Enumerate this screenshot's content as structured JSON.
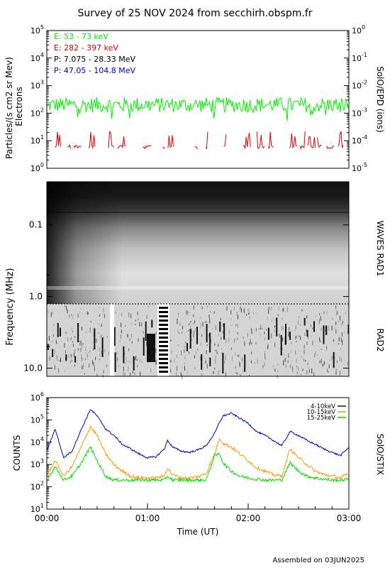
{
  "title": "Survey of 25 NOV 2024 from secchirh.obspm.fr",
  "footer": "Assembled on 03JUN2025",
  "colors": {
    "green": "#00ee00",
    "red": "#dd0000",
    "black": "#000000",
    "blue": "#0000cc",
    "orange": "#ff9900"
  },
  "chart_data": [
    {
      "type": "line",
      "panel": "epd",
      "ylabel": "Particles/(s cm2 sr Mev)",
      "ylabel2": "Electrons",
      "right_label": "SolO/EPD (ions)",
      "y_scale": "log",
      "ylim": [
        1,
        100000
      ],
      "y_ticks": [
        "10^0",
        "10^1",
        "10^2",
        "10^3",
        "10^4",
        "10^5"
      ],
      "y2lim": [
        1e-05,
        1
      ],
      "y2_ticks": [
        "10^-5",
        "10^-4",
        "10^-3",
        "10^-2",
        "10^-1",
        "10^0"
      ],
      "legend": [
        {
          "label": "E: 53 - 73 keV",
          "color": "#00ee00"
        },
        {
          "label": "E: 282 - 397 keV",
          "color": "#dd0000"
        },
        {
          "label": "P: 7.075 - 28.33 MeV",
          "color": "#000000"
        },
        {
          "label": "P: 47.05 - 104.8 MeV",
          "color": "#0000cc"
        }
      ],
      "series": [
        {
          "name": "E: 53 - 73 keV",
          "typical_value": 200,
          "range": [
            60,
            400
          ]
        },
        {
          "name": "E: 282 - 397 keV",
          "typical_value": 6,
          "range": [
            5,
            25
          ],
          "note_sporadic": true
        }
      ]
    },
    {
      "type": "heatmap",
      "panel": "waves",
      "ylabel": "Frequency (MHz)",
      "y_scale": "log",
      "y_ticks": [
        "0.1",
        "1.0",
        "10.0"
      ],
      "ylim": [
        0.025,
        13
      ],
      "bands": [
        {
          "label": "WAVES RAD1",
          "range": [
            0.025,
            1.0
          ]
        },
        {
          "label": "RAD2",
          "range": [
            1.0,
            13
          ]
        }
      ]
    },
    {
      "type": "line",
      "panel": "stix",
      "ylabel": "COUNTS",
      "right_label": "SolO/STIX",
      "y_scale": "log",
      "ylim": [
        10,
        1000000
      ],
      "y_ticks": [
        "10^1",
        "10^2",
        "10^3",
        "10^4",
        "10^5",
        "10^6"
      ],
      "xlabel": "Time (UT)",
      "x_ticks": [
        "00:00",
        "01:00",
        "02:00",
        "03:00"
      ],
      "xlim": [
        "00:00",
        "03:00"
      ],
      "x_minutes": [
        0,
        5,
        10,
        15,
        20,
        26,
        30,
        35,
        40,
        45,
        50,
        55,
        60,
        65,
        70,
        72,
        75,
        80,
        85,
        90,
        95,
        100,
        103,
        105,
        110,
        115,
        120,
        125,
        130,
        135,
        140,
        145,
        150,
        155,
        160,
        165,
        170,
        175,
        180
      ],
      "series": [
        {
          "name": "4-10keV",
          "color": "#0000cc",
          "values": [
            4000,
            40000,
            2000,
            4000,
            30000,
            300000,
            150000,
            40000,
            20000,
            8000,
            5000,
            3000,
            2000,
            2200,
            5000,
            12000,
            6000,
            4000,
            3500,
            4500,
            7000,
            25000,
            80000,
            150000,
            200000,
            120000,
            70000,
            30000,
            20000,
            12000,
            7000,
            30000,
            20000,
            12000,
            8000,
            5000,
            3500,
            2500,
            6000
          ]
        },
        {
          "name": "10-15keV",
          "color": "#ff9900",
          "values": [
            300,
            1500,
            300,
            800,
            5000,
            50000,
            20000,
            3000,
            1000,
            500,
            300,
            250,
            250,
            250,
            300,
            700,
            350,
            250,
            250,
            280,
            400,
            3000,
            15000,
            9000,
            6000,
            3000,
            1500,
            700,
            500,
            350,
            300,
            5000,
            2000,
            1000,
            500,
            350,
            300,
            250,
            400
          ]
        },
        {
          "name": "15-25keV",
          "color": "#00dd00",
          "values": [
            200,
            800,
            200,
            300,
            1000,
            6000,
            1500,
            300,
            200,
            200,
            200,
            200,
            200,
            200,
            200,
            300,
            200,
            200,
            200,
            200,
            200,
            2500,
            3000,
            1200,
            500,
            300,
            250,
            220,
            200,
            200,
            200,
            1200,
            500,
            300,
            250,
            220,
            200,
            200,
            220
          ]
        }
      ]
    }
  ]
}
